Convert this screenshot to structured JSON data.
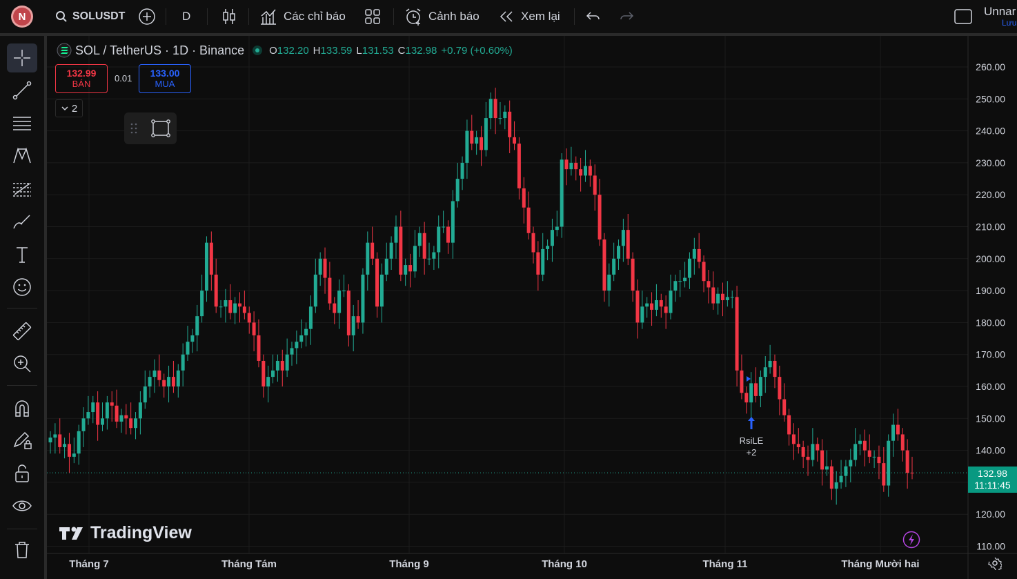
{
  "avatar_letter": "N",
  "toolbar": {
    "symbol": "SOLUSDT",
    "interval": "D",
    "indicators_label": "Các chỉ báo",
    "alert_label": "Cảnh báo",
    "replay_label": "Xem lại",
    "layout_name": "Unnar",
    "layout_status": "Lưu"
  },
  "legend": {
    "title": "SOL / TetherUS · 1D · Binance",
    "o_label": "O",
    "o_value": "132.20",
    "h_label": "H",
    "h_value": "133.59",
    "l_label": "L",
    "l_value": "131.53",
    "c_label": "C",
    "c_value": "132.98",
    "change": "+0.79 (+0.60%)"
  },
  "trade": {
    "sell_price": "132.99",
    "sell_label": "BÁN",
    "spread": "0.01",
    "buy_price": "133.00",
    "buy_label": "MUA"
  },
  "collapse_count": "2",
  "watermark": "TradingView",
  "signal": {
    "name": "RsiLE",
    "extra": "+2"
  },
  "price_tag": {
    "price": "132.98",
    "countdown": "11:11:45"
  },
  "colors": {
    "up": "#22ab94",
    "down": "#f23645",
    "bg": "#0d0d0d",
    "accent": "#2962ff"
  },
  "chart_data": {
    "type": "candlestick",
    "ylim": [
      110,
      260
    ],
    "y_ticks": [
      "260.00",
      "250.00",
      "240.00",
      "230.00",
      "220.00",
      "210.00",
      "200.00",
      "190.00",
      "180.00",
      "170.00",
      "160.00",
      "150.00",
      "140.00",
      "130.00",
      "120.00",
      "110.00"
    ],
    "x_ticks": [
      "Tháng 7",
      "Tháng Tám",
      "Tháng 9",
      "Tháng 10",
      "Tháng 11",
      "Tháng Mười hai"
    ],
    "last_price": 132.98,
    "closes": [
      144,
      145,
      141,
      142,
      138,
      139,
      146,
      150,
      152,
      155,
      148,
      150,
      155,
      154,
      149,
      151,
      150,
      147,
      150,
      155,
      160,
      163,
      165,
      162,
      160,
      163,
      160,
      165,
      170,
      174,
      176,
      182,
      190,
      205,
      195,
      185,
      185,
      187,
      183,
      186,
      185,
      183,
      180,
      176,
      168,
      160,
      163,
      165,
      168,
      165,
      170,
      172,
      174,
      176,
      178,
      185,
      195,
      200,
      194,
      186,
      183,
      190,
      190,
      176,
      182,
      180,
      195,
      205,
      200,
      185,
      195,
      200,
      205,
      210,
      195,
      198,
      196,
      204,
      208,
      200,
      200,
      202,
      210,
      210,
      205,
      218,
      225,
      230,
      240,
      236,
      238,
      234,
      244,
      250,
      244,
      244,
      246,
      238,
      236,
      222,
      216,
      208,
      202,
      195,
      203,
      204,
      209,
      210,
      231,
      228,
      230,
      228,
      226,
      229,
      226,
      220,
      206,
      190,
      195,
      200,
      204,
      209,
      200,
      190,
      180,
      185,
      186,
      184,
      187,
      185,
      183,
      190,
      193,
      193,
      194,
      200,
      203,
      199,
      193,
      191,
      186,
      189,
      187,
      188,
      188,
      165,
      158,
      155,
      161,
      157,
      163,
      166,
      168,
      163,
      156,
      151,
      145,
      142,
      141,
      138,
      137,
      142,
      140,
      134,
      135,
      128,
      130,
      132,
      135,
      137,
      142,
      143,
      140,
      138,
      138,
      136,
      129,
      143,
      148,
      145,
      140,
      133,
      132.98
    ]
  }
}
